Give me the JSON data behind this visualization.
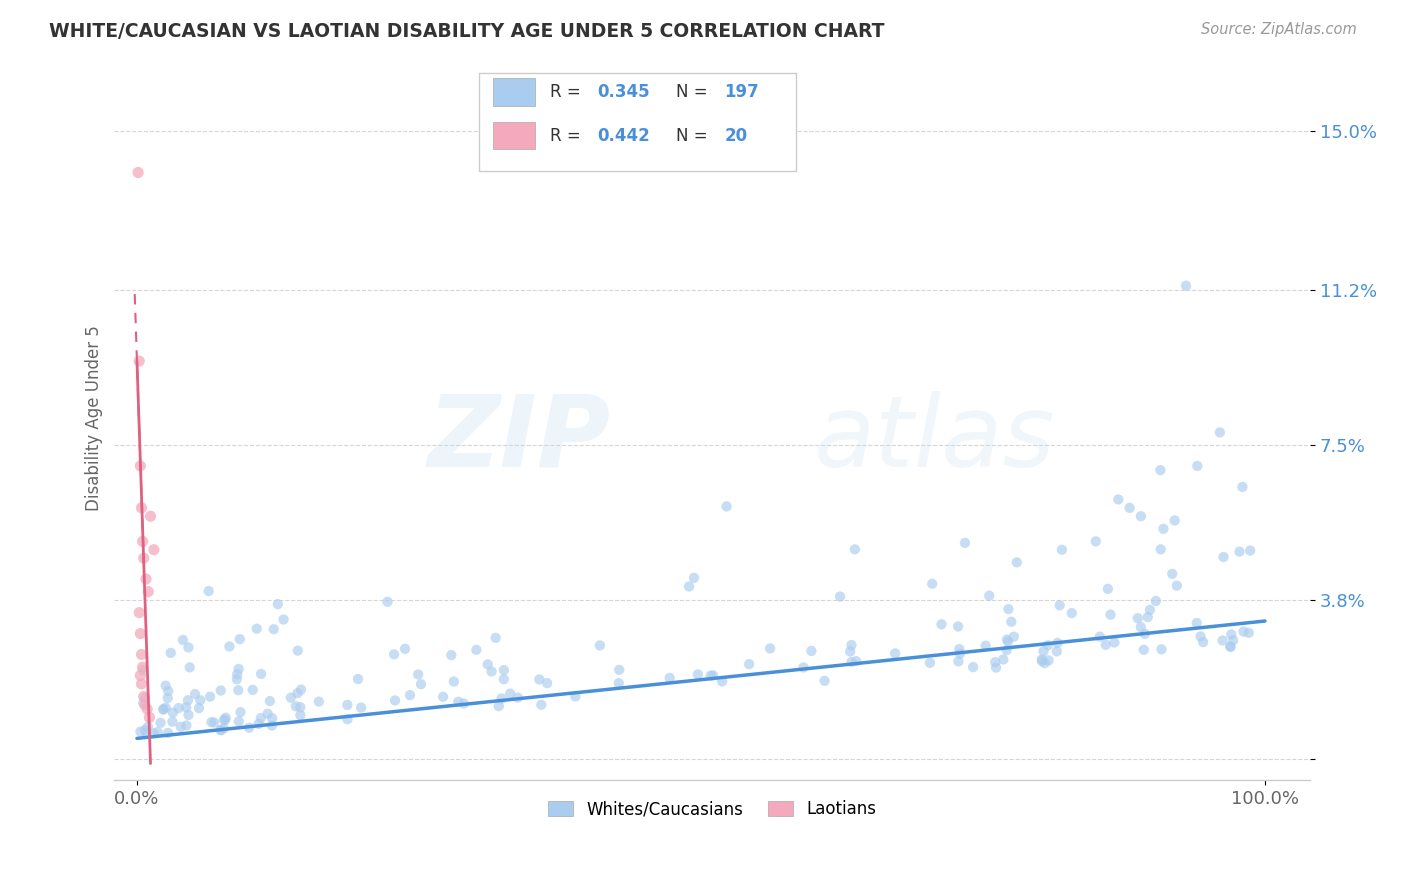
{
  "title": "WHITE/CAUCASIAN VS LAOTIAN DISABILITY AGE UNDER 5 CORRELATION CHART",
  "source": "Source: ZipAtlas.com",
  "ylabel": "Disability Age Under 5",
  "xlabel": "",
  "watermark_zip": "ZIP",
  "watermark_atlas": "atlas",
  "legend_labels": [
    "Whites/Caucasians",
    "Laotians"
  ],
  "blue_color": "#aaccee",
  "pink_color": "#f4aabc",
  "blue_line_color": "#4a90d9",
  "pink_line_color": "#e06080",
  "blue_R": 0.345,
  "blue_N": 197,
  "pink_R": 0.442,
  "pink_N": 20,
  "ytick_vals": [
    0.0,
    0.038,
    0.075,
    0.112,
    0.15
  ],
  "ytick_labels": [
    "",
    "3.8%",
    "7.5%",
    "11.2%",
    "15.0%"
  ],
  "xlim": [
    -0.02,
    1.04
  ],
  "ylim": [
    -0.005,
    0.168
  ],
  "xtick_vals": [
    0.0,
    1.0
  ],
  "xtick_labels": [
    "0.0%",
    "100.0%"
  ],
  "background_color": "#ffffff",
  "grid_color": "#cccccc",
  "title_color": "#333333",
  "blue_scatter_alpha": 0.65,
  "pink_scatter_alpha": 0.75,
  "blue_scatter_size": 55,
  "pink_scatter_size": 65,
  "pink_points_x": [
    0.001,
    0.002,
    0.003,
    0.004,
    0.005,
    0.006,
    0.008,
    0.01,
    0.012,
    0.015,
    0.002,
    0.003,
    0.004,
    0.005,
    0.003,
    0.004,
    0.006,
    0.007,
    0.009,
    0.011
  ],
  "pink_points_y": [
    0.14,
    0.095,
    0.07,
    0.06,
    0.052,
    0.048,
    0.043,
    0.04,
    0.058,
    0.05,
    0.035,
    0.03,
    0.025,
    0.022,
    0.02,
    0.018,
    0.015,
    0.013,
    0.012,
    0.01
  ],
  "blue_seed": 42
}
